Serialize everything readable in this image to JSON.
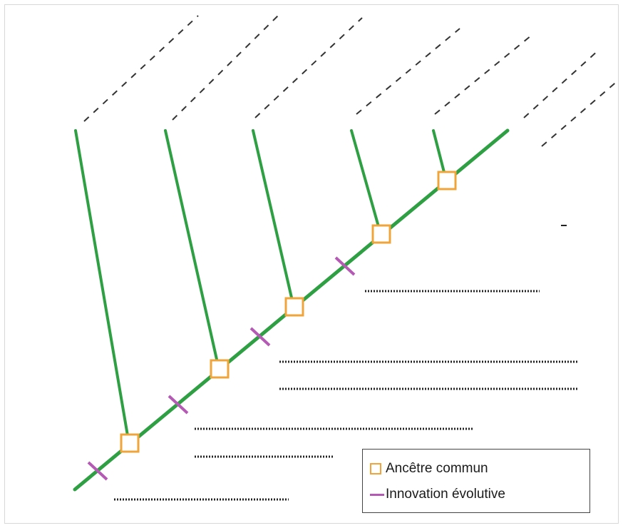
{
  "legend": {
    "ancestor_label": "Ancêtre commun",
    "innovation_label": "Innovation évolutive"
  },
  "colors": {
    "branch": "#2ea043",
    "ancestor_box": "#f0a43a",
    "innovation_mark": "#b45ab4",
    "dotted_line": "#222222",
    "dashed_line": "#333333"
  },
  "icons": {
    "ancestor": "orange-square-outline-icon",
    "innovation": "purple-dash-icon"
  }
}
